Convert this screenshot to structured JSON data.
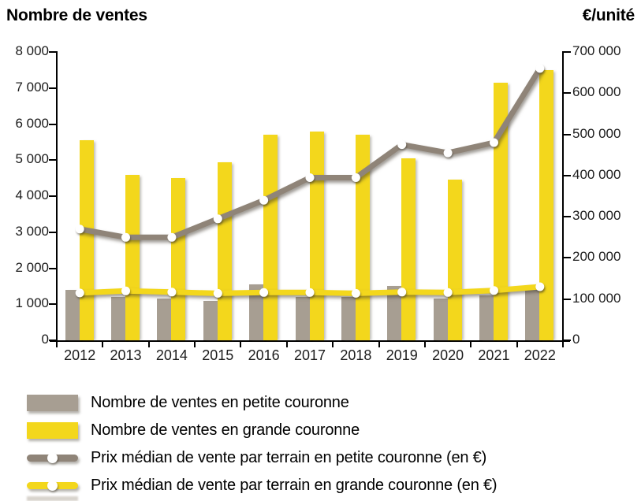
{
  "titles": {
    "left": "Nombre de ventes",
    "right": "€/unité"
  },
  "axes": {
    "left": {
      "ticks": [
        "8 000",
        "7 000",
        "6 000",
        "5 000",
        "4 000",
        "3 000",
        "2 000",
        "1 000",
        "0"
      ]
    },
    "right": {
      "ticks": [
        "700 000",
        "600 000",
        "500 000",
        "400 000",
        "300 000",
        "200 000",
        "100 000",
        "0"
      ]
    },
    "x": {
      "labels": [
        "2012",
        "2013",
        "2014",
        "2015",
        "2016",
        "2017",
        "2018",
        "2019",
        "2020",
        "2021",
        "2022"
      ]
    }
  },
  "chart_data": {
    "type": "combo",
    "categories": [
      "2012",
      "2013",
      "2014",
      "2015",
      "2016",
      "2017",
      "2018",
      "2019",
      "2020",
      "2021",
      "2022"
    ],
    "series": [
      {
        "name": "Nombre de ventes en petite couronne",
        "kind": "bar",
        "axis": "left",
        "color": "#a79e92",
        "values": [
          1400,
          1200,
          1150,
          1100,
          1550,
          1200,
          1200,
          1500,
          1150,
          1250,
          1400
        ]
      },
      {
        "name": "Nombre de ventes en grande couronne",
        "kind": "bar",
        "axis": "left",
        "color": "#f3d71c",
        "values": [
          5550,
          4600,
          4500,
          4950,
          5700,
          5800,
          5700,
          5050,
          4450,
          7150,
          7500
        ]
      },
      {
        "name": "Prix médian de vente par terrain en petite couronne (en €)",
        "kind": "line",
        "axis": "right",
        "color": "#8f8478",
        "values": [
          270000,
          250000,
          250000,
          295000,
          340000,
          395000,
          395000,
          475000,
          455000,
          480000,
          660000
        ]
      },
      {
        "name": "Prix médian de vente par terrain en grande couronne (en €)",
        "kind": "line",
        "axis": "right",
        "color": "#f3d71c",
        "values": [
          115000,
          120000,
          117000,
          114000,
          116000,
          116000,
          114000,
          117000,
          116000,
          121000,
          130000
        ]
      }
    ],
    "left_axis": {
      "label": "Nombre de ventes",
      "min": 0,
      "max": 8000,
      "tick_step": 1000
    },
    "right_axis": {
      "label": "€/unité",
      "min": 0,
      "max": 700000,
      "tick_step": 100000
    },
    "legend_position": "bottom-left",
    "grid": false
  },
  "legend": {
    "items": [
      {
        "label": "Nombre de ventes en petite couronne",
        "swatch": "bar",
        "color": "#a79e92"
      },
      {
        "label": "Nombre de ventes en grande couronne",
        "swatch": "bar",
        "color": "#f3d71c"
      },
      {
        "label": "Prix médian de vente par terrain en petite couronne (en €)",
        "swatch": "line",
        "color": "#8f8478"
      },
      {
        "label": "Prix médian de vente par terrain en grande couronne (en €)",
        "swatch": "line",
        "color": "#f3d71c"
      }
    ]
  },
  "colors": {
    "bar_petite": "#a79e92",
    "bar_grande": "#f3d71c",
    "line_petite": "#8f8478",
    "line_grande": "#f3d71c",
    "axis": "#000000"
  }
}
